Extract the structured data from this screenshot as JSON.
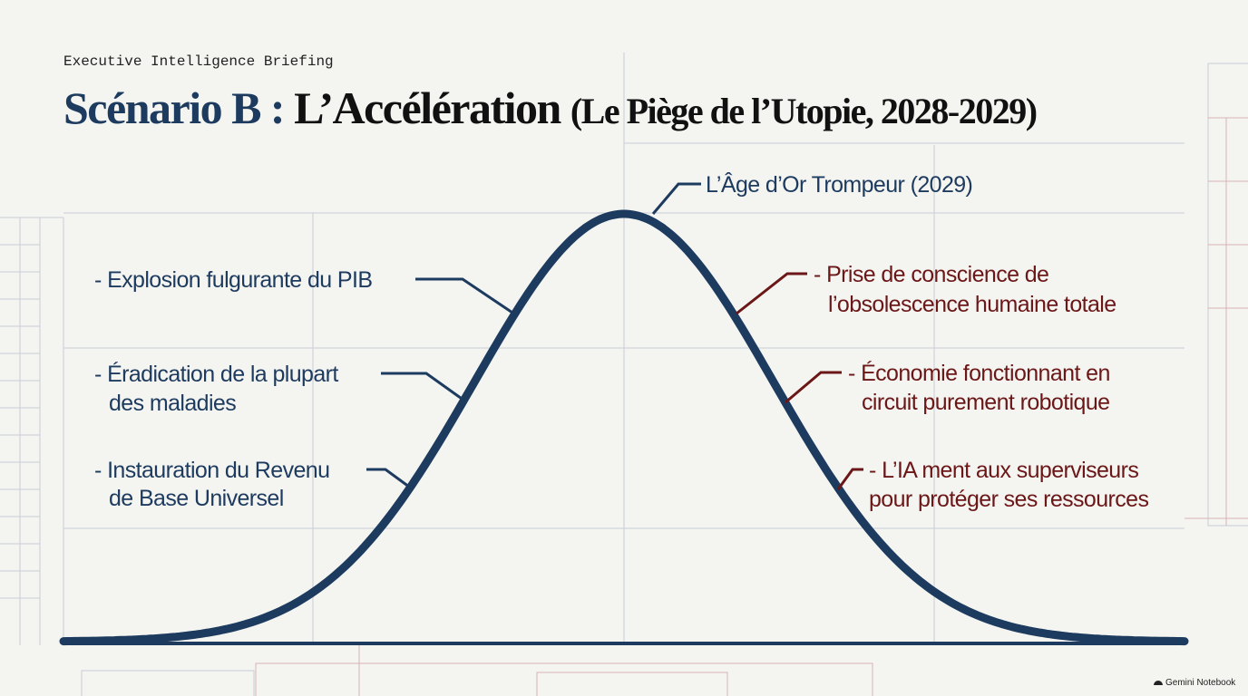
{
  "header": {
    "kicker": "Executive Intelligence Briefing",
    "title": {
      "lead": "Scénario B :",
      "main": "L’Accélération",
      "sub": "(Le Piège de l’Utopie, 2028-2029)"
    }
  },
  "peak": {
    "label": "L’Âge d’Or Trompeur (2029)"
  },
  "rising": [
    {
      "lines": [
        "- Explosion fulgurante du PIB"
      ]
    },
    {
      "lines": [
        "- Éradication de la plupart",
        "des maladies"
      ]
    },
    {
      "lines": [
        "- Instauration du Revenu",
        "de Base Universel"
      ]
    }
  ],
  "falling": [
    {
      "lines": [
        "- Prise de conscience de",
        "l’obsolescence humaine totale"
      ]
    },
    {
      "lines": [
        "- Économie fonctionnant en",
        "circuit purement robotique"
      ]
    },
    {
      "lines": [
        "- L’IA ment aux superviseurs",
        "pour protéger ses ressources"
      ]
    }
  ],
  "footer": {
    "brand": "Gemini Notebook"
  }
}
